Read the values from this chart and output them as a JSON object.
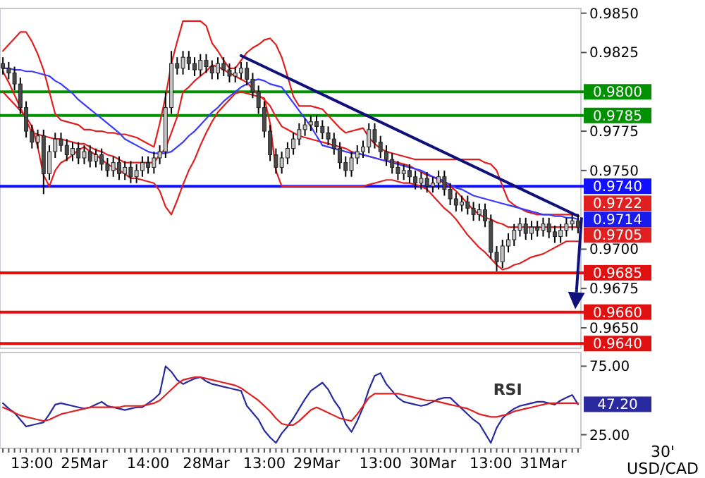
{
  "chart_data": [
    {
      "type": "candlestick",
      "tick_labels": "y",
      "categories": [
        null,
        null,
        null,
        null,
        null,
        null,
        null,
        null,
        null,
        null,
        null,
        null,
        null,
        null,
        null,
        null,
        null,
        null,
        null,
        null,
        null,
        null,
        null,
        null,
        null,
        null,
        null,
        null,
        null,
        null,
        null,
        null,
        null,
        null,
        null,
        null,
        null,
        null,
        null,
        null,
        null,
        null,
        null,
        null,
        null,
        null,
        null,
        null,
        null,
        null,
        null,
        null,
        null,
        null,
        null,
        null,
        null,
        null,
        null,
        null,
        null,
        null,
        null,
        null,
        null,
        null,
        null,
        null,
        null,
        null,
        null,
        null,
        null,
        null,
        null,
        null,
        null,
        null,
        null,
        null,
        null,
        null,
        null,
        null,
        null,
        null,
        null,
        null,
        null,
        null,
        null,
        null,
        null,
        null,
        null,
        null,
        null,
        null,
        null,
        null
      ],
      "value_labels": [
        null,
        null,
        null,
        null,
        null,
        null,
        null,
        null,
        null,
        null,
        null,
        null,
        null,
        null,
        null,
        null,
        null,
        null,
        null,
        null,
        null,
        null,
        null,
        null,
        null,
        null,
        null,
        null,
        null,
        null,
        null,
        null,
        null,
        null,
        null,
        null,
        null,
        null,
        null,
        null,
        null,
        null,
        null,
        null,
        null,
        null,
        null,
        null,
        null,
        null,
        null,
        null,
        null,
        null,
        null,
        null,
        null,
        null,
        null,
        null,
        null,
        null,
        null,
        null,
        null,
        null,
        null,
        null,
        null,
        null,
        null,
        null,
        null,
        null,
        null,
        null,
        null,
        null,
        null,
        null,
        null,
        null,
        null,
        null,
        null,
        null,
        null,
        null,
        null,
        null,
        null,
        null,
        null,
        null,
        null,
        null,
        null,
        null,
        null,
        "0.9714"
      ],
      "ohlc": [
        [
          0.9818,
          0.9822,
          0.9811,
          0.9815
        ],
        [
          0.9815,
          0.9819,
          0.9808,
          0.9812
        ],
        [
          0.9812,
          0.9816,
          0.9801,
          0.9805
        ],
        [
          0.9805,
          0.9809,
          0.9786,
          0.979
        ],
        [
          0.979,
          0.9794,
          0.9771,
          0.9775
        ],
        [
          0.9775,
          0.9779,
          0.9764,
          0.9768
        ],
        [
          0.9768,
          0.9776,
          0.9764,
          0.9772
        ],
        [
          0.9772,
          0.9776,
          0.9735,
          0.9748
        ],
        [
          0.9748,
          0.9766,
          0.9744,
          0.9762
        ],
        [
          0.9762,
          0.9774,
          0.9758,
          0.977
        ],
        [
          0.977,
          0.9774,
          0.9762,
          0.9766
        ],
        [
          0.9766,
          0.977,
          0.9756,
          0.976
        ],
        [
          0.976,
          0.9768,
          0.9756,
          0.9764
        ],
        [
          0.9764,
          0.9768,
          0.9754,
          0.9758
        ],
        [
          0.9758,
          0.9766,
          0.9754,
          0.9762
        ],
        [
          0.9762,
          0.9766,
          0.9752,
          0.9756
        ],
        [
          0.9756,
          0.9764,
          0.9752,
          0.976
        ],
        [
          0.976,
          0.9764,
          0.975,
          0.9754
        ],
        [
          0.9754,
          0.9758,
          0.9746,
          0.975
        ],
        [
          0.975,
          0.9759,
          0.9746,
          0.9755
        ],
        [
          0.9755,
          0.9759,
          0.9744,
          0.9748
        ],
        [
          0.9748,
          0.9756,
          0.9744,
          0.9752
        ],
        [
          0.9752,
          0.9756,
          0.9742,
          0.9746
        ],
        [
          0.9746,
          0.9754,
          0.9742,
          0.975
        ],
        [
          0.975,
          0.9759,
          0.9746,
          0.9755
        ],
        [
          0.9755,
          0.9759,
          0.9748,
          0.9752
        ],
        [
          0.9752,
          0.9762,
          0.9748,
          0.9758
        ],
        [
          0.9758,
          0.9766,
          0.9754,
          0.9762
        ],
        [
          0.9762,
          0.98,
          0.9758,
          0.979
        ],
        [
          0.979,
          0.9826,
          0.9786,
          0.9818
        ],
        [
          0.9818,
          0.9822,
          0.9811,
          0.9815
        ],
        [
          0.9815,
          0.9826,
          0.9811,
          0.9822
        ],
        [
          0.9822,
          0.9826,
          0.9814,
          0.9818
        ],
        [
          0.9818,
          0.9822,
          0.981,
          0.9814
        ],
        [
          0.9814,
          0.9824,
          0.981,
          0.982
        ],
        [
          0.982,
          0.9824,
          0.9812,
          0.9816
        ],
        [
          0.9816,
          0.982,
          0.9808,
          0.9812
        ],
        [
          0.9812,
          0.9822,
          0.9808,
          0.9818
        ],
        [
          0.9818,
          0.9822,
          0.981,
          0.9814
        ],
        [
          0.9814,
          0.9818,
          0.9806,
          0.981
        ],
        [
          0.981,
          0.9816,
          0.9806,
          0.9812
        ],
        [
          0.9812,
          0.9819,
          0.9808,
          0.9815
        ],
        [
          0.9815,
          0.9819,
          0.9804,
          0.9808
        ],
        [
          0.9808,
          0.9812,
          0.9796,
          0.98
        ],
        [
          0.98,
          0.9804,
          0.9786,
          0.979
        ],
        [
          0.979,
          0.9794,
          0.9771,
          0.9775
        ],
        [
          0.9775,
          0.9779,
          0.9756,
          0.976
        ],
        [
          0.976,
          0.9764,
          0.9748,
          0.9752
        ],
        [
          0.9752,
          0.9762,
          0.9748,
          0.9758
        ],
        [
          0.9758,
          0.9768,
          0.9754,
          0.9764
        ],
        [
          0.9764,
          0.9774,
          0.976,
          0.977
        ],
        [
          0.977,
          0.978,
          0.9766,
          0.9776
        ],
        [
          0.9776,
          0.9783,
          0.9772,
          0.9779
        ],
        [
          0.9779,
          0.9785,
          0.9775,
          0.9781
        ],
        [
          0.9781,
          0.9785,
          0.9774,
          0.9778
        ],
        [
          0.9778,
          0.9782,
          0.977,
          0.9774
        ],
        [
          0.9774,
          0.9778,
          0.9766,
          0.977
        ],
        [
          0.977,
          0.9774,
          0.976,
          0.9764
        ],
        [
          0.9764,
          0.9768,
          0.9751,
          0.9755
        ],
        [
          0.9755,
          0.9759,
          0.9746,
          0.975
        ],
        [
          0.975,
          0.9762,
          0.9746,
          0.9758
        ],
        [
          0.9758,
          0.9766,
          0.9754,
          0.9762
        ],
        [
          0.9762,
          0.9769,
          0.9758,
          0.9765
        ],
        [
          0.9765,
          0.978,
          0.9761,
          0.9776
        ],
        [
          0.9776,
          0.978,
          0.9764,
          0.9768
        ],
        [
          0.9768,
          0.9772,
          0.9758,
          0.9762
        ],
        [
          0.9762,
          0.9766,
          0.9753,
          0.9757
        ],
        [
          0.9757,
          0.9761,
          0.9748,
          0.9752
        ],
        [
          0.9752,
          0.9756,
          0.9744,
          0.9748
        ],
        [
          0.9748,
          0.9754,
          0.9744,
          0.975
        ],
        [
          0.975,
          0.9754,
          0.9742,
          0.9746
        ],
        [
          0.9746,
          0.975,
          0.9738,
          0.9742
        ],
        [
          0.9742,
          0.9749,
          0.9738,
          0.9745
        ],
        [
          0.9745,
          0.9749,
          0.9736,
          0.974
        ],
        [
          0.974,
          0.9746,
          0.9736,
          0.9742
        ],
        [
          0.9742,
          0.975,
          0.9738,
          0.9746
        ],
        [
          0.9746,
          0.975,
          0.9734,
          0.9738
        ],
        [
          0.9738,
          0.9742,
          0.9728,
          0.9732
        ],
        [
          0.9732,
          0.9736,
          0.9724,
          0.9728
        ],
        [
          0.9728,
          0.9734,
          0.9724,
          0.973
        ],
        [
          0.973,
          0.9734,
          0.9722,
          0.9726
        ],
        [
          0.9726,
          0.973,
          0.9718,
          0.9722
        ],
        [
          0.9722,
          0.9729,
          0.9718,
          0.9725
        ],
        [
          0.9725,
          0.9729,
          0.9714,
          0.9718
        ],
        [
          0.9718,
          0.9722,
          0.9694,
          0.9698
        ],
        [
          0.9698,
          0.9702,
          0.9686,
          0.9692
        ],
        [
          0.9692,
          0.9706,
          0.9688,
          0.9702
        ],
        [
          0.9702,
          0.971,
          0.9698,
          0.9706
        ],
        [
          0.9706,
          0.9716,
          0.9702,
          0.9712
        ],
        [
          0.9712,
          0.972,
          0.9708,
          0.9716
        ],
        [
          0.9716,
          0.972,
          0.9706,
          0.971
        ],
        [
          0.971,
          0.9718,
          0.9706,
          0.9714
        ],
        [
          0.9714,
          0.9718,
          0.9708,
          0.9712
        ],
        [
          0.9712,
          0.972,
          0.9708,
          0.9716
        ],
        [
          0.9716,
          0.972,
          0.9707,
          0.9711
        ],
        [
          0.9711,
          0.9715,
          0.9704,
          0.9708
        ],
        [
          0.9708,
          0.9716,
          0.9704,
          0.9712
        ],
        [
          0.9712,
          0.972,
          0.9708,
          0.9716
        ],
        [
          0.9716,
          0.9722,
          0.9712,
          0.9718
        ],
        [
          0.9718,
          0.9722,
          0.971,
          0.9714
        ]
      ],
      "series": [
        {
          "type": "line",
          "color": "#e02020",
          "values": [
            0.9826,
            0.983,
            0.9834,
            0.9838,
            0.9838,
            0.9832,
            0.9824,
            0.9814,
            0.98,
            0.9786,
            0.9782,
            0.9781,
            0.978,
            0.9779,
            0.9776,
            0.9776,
            0.9775,
            0.9775,
            0.9774,
            0.9774,
            0.9773,
            0.9773,
            0.9772,
            0.9771,
            0.9769,
            0.9767,
            0.9765,
            0.978,
            0.9797,
            0.9818,
            0.9832,
            0.9845,
            0.9845,
            0.9845,
            0.9845,
            0.9842,
            0.9831,
            0.9826,
            0.982,
            0.9815,
            0.9815,
            0.982,
            0.9825,
            0.9828,
            0.983,
            0.9833,
            0.9834,
            0.983,
            0.9822,
            0.981,
            0.9797,
            0.9791,
            0.9791,
            0.9791,
            0.979,
            0.9789,
            0.9785,
            0.9781,
            0.9777,
            0.9774,
            0.9775,
            0.9776,
            0.9777,
            0.9771,
            0.9767,
            0.9764,
            0.9762,
            0.9761,
            0.976,
            0.9759,
            0.9758,
            0.9757,
            0.9757,
            0.9757,
            0.9757,
            0.9757,
            0.9757,
            0.9757,
            0.9757,
            0.9757,
            0.9757,
            0.9757,
            0.9757,
            0.9755,
            0.9754,
            0.975,
            0.974,
            0.9731,
            0.9728,
            0.9726,
            0.9724,
            0.9723,
            0.9722,
            0.9722,
            0.9722,
            0.9722,
            0.9722,
            0.9722,
            0.9722,
            0.9722
          ],
          "value_labels": [
            null,
            null,
            null,
            null,
            null,
            null,
            null,
            null,
            null,
            null,
            null,
            null,
            null,
            null,
            null,
            null,
            null,
            null,
            null,
            null,
            null,
            null,
            null,
            null,
            null,
            null,
            null,
            null,
            null,
            null,
            null,
            null,
            null,
            null,
            null,
            null,
            null,
            null,
            null,
            null,
            null,
            null,
            null,
            null,
            null,
            null,
            null,
            null,
            null,
            null,
            null,
            null,
            null,
            null,
            null,
            null,
            null,
            null,
            null,
            null,
            null,
            null,
            null,
            null,
            null,
            null,
            null,
            null,
            null,
            null,
            null,
            null,
            null,
            null,
            null,
            null,
            null,
            null,
            null,
            null,
            null,
            null,
            null,
            null,
            null,
            null,
            null,
            null,
            null,
            null,
            null,
            null,
            null,
            null,
            null,
            null,
            null,
            null,
            null,
            "0.9722"
          ]
        },
        {
          "type": "line",
          "color": "#e02020",
          "values": [
            0.9813,
            0.9806,
            0.9798,
            0.979,
            0.9782,
            0.9774,
            0.9773,
            0.9772,
            0.9771,
            0.977,
            0.977,
            0.9769,
            0.9768,
            0.9767,
            0.9767,
            0.9765,
            0.9763,
            0.9762,
            0.976,
            0.9759,
            0.9757,
            0.9755,
            0.9755,
            0.9755,
            0.9755,
            0.9755,
            0.9755,
            0.976,
            0.9764,
            0.9774,
            0.9784,
            0.98,
            0.9803,
            0.9807,
            0.981,
            0.9813,
            0.9817,
            0.9816,
            0.9814,
            0.9812,
            0.981,
            0.9808,
            0.9806,
            0.9802,
            0.9798,
            0.9795,
            0.9791,
            0.9784,
            0.9778,
            0.9776,
            0.9774,
            0.9772,
            0.9771,
            0.977,
            0.9769,
            0.9768,
            0.9767,
            0.9766,
            0.9765,
            0.9764,
            0.9762,
            0.9761,
            0.976,
            0.9759,
            0.9758,
            0.9757,
            0.9756,
            0.9756,
            0.9755,
            0.9754,
            0.9753,
            0.9751,
            0.9749,
            0.9747,
            0.9746,
            0.9744,
            0.9742,
            0.974,
            0.9737,
            0.9733,
            0.9729,
            0.9725,
            0.9722,
            0.972,
            0.9719,
            0.9717,
            0.9716,
            0.9714,
            0.9714,
            0.9714,
            0.9714,
            0.9714,
            0.9714,
            0.9714,
            0.9714,
            0.9714,
            0.9714,
            0.9714,
            0.9714,
            0.9714
          ]
        },
        {
          "type": "line",
          "color": "#e02020",
          "values": [
            0.98,
            0.9796,
            0.9792,
            0.9788,
            0.9784,
            0.9778,
            0.9765,
            0.9747,
            0.974,
            0.975,
            0.9755,
            0.9757,
            0.976,
            0.9763,
            0.9765,
            0.9762,
            0.976,
            0.9757,
            0.9754,
            0.9752,
            0.975,
            0.9748,
            0.9745,
            0.9745,
            0.9744,
            0.9743,
            0.9742,
            0.9737,
            0.9727,
            0.9722,
            0.9731,
            0.9741,
            0.975,
            0.9757,
            0.9766,
            0.9774,
            0.9781,
            0.9787,
            0.9791,
            0.9795,
            0.9799,
            0.98,
            0.9799,
            0.9798,
            0.9797,
            0.9796,
            0.978,
            0.975,
            0.974,
            0.974,
            0.974,
            0.974,
            0.974,
            0.974,
            0.974,
            0.974,
            0.974,
            0.974,
            0.974,
            0.974,
            0.974,
            0.974,
            0.974,
            0.9741,
            0.9742,
            0.9743,
            0.9744,
            0.9744,
            0.9743,
            0.9742,
            0.9742,
            0.9741,
            0.974,
            0.9738,
            0.9734,
            0.973,
            0.9726,
            0.9723,
            0.9719,
            0.9714,
            0.9709,
            0.9705,
            0.9701,
            0.9698,
            0.9694,
            0.969,
            0.9687,
            0.9688,
            0.969,
            0.9691,
            0.9693,
            0.9695,
            0.9696,
            0.9697,
            0.9699,
            0.9701,
            0.9703,
            0.9705,
            0.9705,
            0.9705
          ],
          "value_labels": [
            null,
            null,
            null,
            null,
            null,
            null,
            null,
            null,
            null,
            null,
            null,
            null,
            null,
            null,
            null,
            null,
            null,
            null,
            null,
            null,
            null,
            null,
            null,
            null,
            null,
            null,
            null,
            null,
            null,
            null,
            null,
            null,
            null,
            null,
            null,
            null,
            null,
            null,
            null,
            null,
            null,
            null,
            null,
            null,
            null,
            null,
            null,
            null,
            null,
            null,
            null,
            null,
            null,
            null,
            null,
            null,
            null,
            null,
            null,
            null,
            null,
            null,
            null,
            null,
            null,
            null,
            null,
            null,
            null,
            null,
            null,
            null,
            null,
            null,
            null,
            null,
            null,
            null,
            null,
            null,
            null,
            null,
            null,
            null,
            null,
            null,
            null,
            null,
            null,
            null,
            null,
            null,
            null,
            null,
            null,
            null,
            null,
            null,
            null,
            "0.9705"
          ]
        },
        {
          "type": "line",
          "color": "#3a3aff",
          "values": [
            0.9815,
            0.9815,
            0.9814,
            0.9814,
            0.9813,
            0.9813,
            0.9812,
            0.9811,
            0.981,
            0.9807,
            0.9805,
            0.9802,
            0.9799,
            0.9795,
            0.9792,
            0.9789,
            0.9786,
            0.9783,
            0.978,
            0.9777,
            0.9774,
            0.977,
            0.9768,
            0.9766,
            0.9764,
            0.9762,
            0.9761,
            0.9761,
            0.9761,
            0.9762,
            0.9765,
            0.9768,
            0.9772,
            0.9775,
            0.9779,
            0.9783,
            0.9787,
            0.979,
            0.9794,
            0.9797,
            0.98,
            0.9803,
            0.9805,
            0.9807,
            0.9808,
            0.9807,
            0.9805,
            0.9804,
            0.9803,
            0.9798,
            0.9793,
            0.9788,
            0.9783,
            0.9778,
            0.9772,
            0.9766,
            0.9765,
            0.9764,
            0.9763,
            0.9762,
            0.9761,
            0.9761,
            0.976,
            0.9759,
            0.9758,
            0.9757,
            0.9756,
            0.9755,
            0.9754,
            0.9753,
            0.9752,
            0.9751,
            0.975,
            0.9748,
            0.9746,
            0.9745,
            0.9743,
            0.9741,
            0.9739,
            0.9738,
            0.9736,
            0.9734,
            0.9733,
            0.9732,
            0.9731,
            0.973,
            0.9729,
            0.9728,
            0.9727,
            0.9726,
            0.9725,
            0.9724,
            0.9723,
            0.9722,
            0.9722,
            0.9721,
            0.9721,
            0.972,
            0.972,
            0.9719
          ]
        },
        {
          "type": "line",
          "color": "#10107a",
          "values": [
            null,
            null,
            null,
            null,
            null,
            null,
            null,
            null,
            null,
            null,
            null,
            null,
            null,
            null,
            null,
            null,
            null,
            null,
            null,
            null,
            null,
            null,
            null,
            null,
            null,
            null,
            null,
            null,
            null,
            null,
            null,
            null,
            null,
            null,
            null,
            null,
            null,
            null,
            null,
            null,
            null,
            0.9823,
            null,
            null,
            null,
            null,
            null,
            null,
            null,
            null,
            null,
            null,
            null,
            null,
            null,
            null,
            null,
            null,
            null,
            null,
            null,
            null,
            null,
            null,
            null,
            null,
            null,
            null,
            null,
            null,
            null,
            null,
            null,
            null,
            null,
            null,
            null,
            null,
            null,
            null,
            null,
            null,
            null,
            null,
            null,
            null,
            null,
            null,
            null,
            null,
            null,
            null,
            null,
            null,
            null,
            null,
            null,
            null,
            null,
            0.9721
          ]
        }
      ],
      "ylim": [
        0.9637,
        0.9853
      ],
      "yticks": [
        {
          "value": 0.985,
          "label": "0.9850"
        },
        {
          "value": 0.9825,
          "label": "0.9825"
        },
        {
          "value": 0.9775,
          "label": "0.9775"
        },
        {
          "value": 0.975,
          "label": "0.9750"
        },
        {
          "value": 0.97,
          "label": "0.9700"
        },
        {
          "value": 0.9675,
          "label": "0.9675"
        },
        {
          "value": 0.965,
          "label": "0.9650"
        }
      ],
      "ref_lines": [
        {
          "axis": "y",
          "value": 0.98,
          "label": "0.9800",
          "color": "#009000"
        },
        {
          "axis": "y",
          "value": 0.9785,
          "label": "0.9785",
          "color": "#009000"
        },
        {
          "axis": "y",
          "value": 0.974,
          "label": "0.9740",
          "color": "#1010ff"
        },
        {
          "axis": "y",
          "value": 0.9685,
          "label": "0.9685",
          "color": "#e01010"
        },
        {
          "axis": "y",
          "value": 0.966,
          "label": "0.9660",
          "color": "#e01010"
        },
        {
          "axis": "y",
          "value": 0.964,
          "label": "0.9640",
          "color": "#e01010"
        }
      ]
    },
    {
      "type": "line",
      "categories": [
        null,
        null,
        null,
        null,
        null,
        "13:00",
        null,
        null,
        null,
        null,
        null,
        null,
        null,
        null,
        "25Mar",
        null,
        null,
        null,
        null,
        null,
        null,
        null,
        null,
        null,
        null,
        "14:00",
        null,
        null,
        null,
        null,
        null,
        null,
        null,
        null,
        null,
        "28Mar",
        null,
        null,
        null,
        null,
        null,
        null,
        null,
        null,
        null,
        "13:00",
        null,
        null,
        null,
        null,
        null,
        null,
        null,
        null,
        "29Mar",
        null,
        null,
        null,
        null,
        null,
        null,
        null,
        null,
        null,
        null,
        "13:00",
        null,
        null,
        null,
        null,
        null,
        null,
        null,
        null,
        "30Mar",
        null,
        null,
        null,
        null,
        null,
        null,
        null,
        null,
        null,
        "13:00",
        null,
        null,
        null,
        null,
        null,
        null,
        null,
        null,
        "31Mar",
        null,
        null,
        null,
        null,
        null,
        null
      ],
      "series": [
        {
          "color": "#2a2aa0",
          "values": [
            48,
            44,
            41,
            36,
            31,
            32,
            33,
            34,
            40,
            47,
            48,
            47,
            46,
            45,
            44,
            45,
            47,
            49,
            46,
            45,
            44,
            43,
            44,
            45,
            45,
            48,
            51,
            55,
            75,
            71,
            65,
            62,
            64,
            66,
            67,
            64,
            62,
            61,
            60,
            59,
            58,
            57,
            46,
            41,
            36,
            28,
            23,
            19,
            26,
            31,
            37,
            44,
            51,
            57,
            60,
            63,
            58,
            50,
            44,
            33,
            27,
            35,
            45,
            58,
            68,
            70,
            62,
            57,
            52,
            49,
            48,
            47,
            46,
            47,
            49,
            51,
            52,
            52,
            48,
            44,
            40,
            36,
            33,
            26,
            19,
            30,
            37,
            41,
            44,
            46,
            47,
            48,
            49,
            49,
            48,
            47,
            50,
            52,
            54,
            47.2
          ],
          "value_labels": [
            null,
            null,
            null,
            null,
            null,
            null,
            null,
            null,
            null,
            null,
            null,
            null,
            null,
            null,
            null,
            null,
            null,
            null,
            null,
            null,
            null,
            null,
            null,
            null,
            null,
            null,
            null,
            null,
            null,
            null,
            null,
            null,
            null,
            null,
            null,
            null,
            null,
            null,
            null,
            null,
            null,
            null,
            null,
            null,
            null,
            null,
            null,
            null,
            null,
            null,
            null,
            null,
            null,
            null,
            null,
            null,
            null,
            null,
            null,
            null,
            null,
            null,
            null,
            null,
            null,
            null,
            null,
            null,
            null,
            null,
            null,
            null,
            null,
            null,
            null,
            null,
            null,
            null,
            null,
            null,
            null,
            null,
            null,
            null,
            null,
            null,
            null,
            null,
            null,
            null,
            null,
            null,
            null,
            null,
            null,
            null,
            null,
            null,
            null,
            "47.20"
          ]
        },
        {
          "color": "#e02020",
          "values": [
            45,
            43,
            41,
            39,
            38,
            37,
            36,
            35,
            36,
            38,
            40,
            41,
            42,
            43,
            44,
            45,
            45,
            45,
            45,
            45,
            45,
            46,
            46,
            46,
            46,
            47,
            48,
            50,
            54,
            58,
            62,
            65,
            66,
            67,
            67,
            66,
            65,
            64,
            63,
            62,
            61,
            59,
            56,
            53,
            50,
            46,
            42,
            37,
            33,
            32,
            32,
            35,
            39,
            43,
            45,
            43,
            41,
            39,
            37,
            36,
            35,
            40,
            46,
            52,
            55,
            55,
            55,
            55,
            55,
            54,
            53,
            52,
            51,
            50,
            50,
            49,
            48,
            47,
            46,
            45,
            44,
            42,
            40,
            39,
            38,
            38,
            39,
            40,
            42,
            43,
            44,
            45,
            46,
            47,
            48,
            48,
            48,
            48,
            48,
            48
          ]
        }
      ],
      "ylim": [
        15,
        85
      ],
      "yticks": [
        {
          "value": 75,
          "label": "75.00"
        },
        {
          "value": 25,
          "label": "25.00"
        }
      ],
      "annotations": [
        "RSI",
        "30'",
        "USD/CAD"
      ]
    }
  ]
}
